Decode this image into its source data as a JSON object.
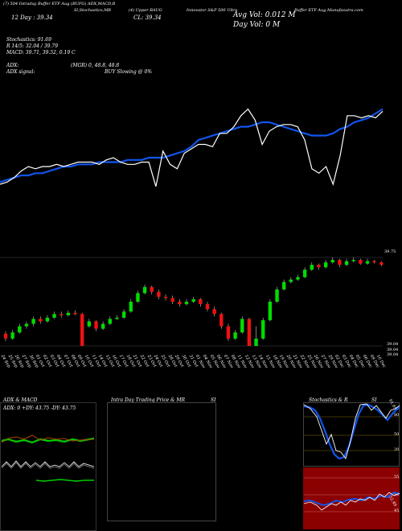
{
  "header": {
    "line1": "(7) 504 Intraday Buffer ETF Aug (BUFG) ADX,MACD,B",
    "line1_b": "Sl,Stochastics,MR",
    "line1_c": "(4) Upper BAUG",
    "line1_d": "Innovator S&P 500 Ultra",
    "line1_e": "Buffer ETF Aug Munafasutra.com",
    "day_label": "12 Day : 39.34",
    "cl_label": "CL: 39.34",
    "avg_vol": "Avg Vol: 0.012  M",
    "day_vol": "Day Vol: 0  M"
  },
  "indicators": {
    "stochastics": "Stochastics: 91.69",
    "r_line": "R  14/5: 32.04 / 39.79",
    "macd": "MACD: 39.71,  39.52,  0.19 C",
    "adx": "ADX:",
    "adx_val": "(MGR) 0,  48.8,  48.8",
    "adx_signal": "ADX  signal:",
    "buy_signal": "BUY Slowing @ 0%"
  },
  "candle_panel": {
    "right_label_top": "39.75",
    "right_label_bottom_1": "39.04",
    "right_label_bottom_2": "39.04",
    "right_label_bottom_3": "39.04"
  },
  "x_axis": {
    "dates": [
      "24 Sep",
      "25 Sep",
      "26 Sep",
      "27 Sep",
      "30 Sep",
      "01 Oct",
      "02 Oct",
      "03 Oct",
      "04 Oct",
      "07 Oct",
      "08 Oct",
      "09 Oct",
      "10 Oct",
      "11 Oct",
      "14 Oct",
      "15 Oct",
      "16 Oct",
      "17 Oct",
      "18 Oct",
      "21 Oct",
      "22 Oct",
      "23 Oct",
      "24 Oct",
      "25 Oct",
      "28 Oct",
      "29 Oct",
      "30 Oct",
      "31 Oct",
      "01 Nov",
      "04 Nov",
      "05 Nov",
      "06 Nov",
      "07 Nov",
      "08 Nov",
      "11 Nov",
      "12 Nov",
      "13 Nov",
      "14 Nov",
      "15 Nov",
      "18 Nov",
      "19 Nov",
      "20 Nov",
      "21 Nov",
      "22 Nov",
      "25 Nov",
      "26 Nov",
      "27 Nov",
      "29 Nov",
      "02 Dec",
      "03 Dec",
      "04 Dec",
      "05 Dec",
      "06 Dec",
      "09 Dec",
      "10 Dec"
    ]
  },
  "bottom_panels": {
    "adx_title": "ADX  & MACD",
    "adx_stats": "ADX: 0   +DY: 43.75   -DY: 43.75",
    "intra_title": "Intra  Day Trading Price  & MR",
    "intra_si": "SI",
    "stoch_title": "Stochastics & R",
    "stoch_si": "SI",
    "stoch_labels": [
      "80",
      "50",
      "20"
    ],
    "rsi_labels": [
      "55",
      "50",
      "45"
    ],
    "stoch_value_tag": "91.69",
    "rsi_value_tag": "52.49"
  },
  "colors": {
    "background": "#000000",
    "price_line": "#ffffff",
    "ma_line": "#1155ee",
    "up_candle": "#00dd00",
    "down_candle": "#ee1111",
    "rsi_panel": "#8b0000"
  },
  "chart_data": [
    {
      "type": "line",
      "title": "",
      "series": [
        {
          "name": "",
          "values": [
            30,
            31,
            32,
            33,
            33,
            34,
            34,
            35,
            36,
            37,
            37,
            38,
            38,
            38,
            39,
            39,
            39,
            39,
            40,
            40,
            40,
            41,
            41,
            41,
            42,
            43,
            44,
            46,
            49,
            50,
            51,
            52,
            53,
            54,
            55,
            55,
            56,
            57,
            57,
            56,
            55,
            54,
            53,
            52,
            51,
            51,
            51,
            52,
            54,
            55,
            57,
            58,
            59,
            61,
            63
          ]
        },
        {
          "name": "",
          "values": [
            29,
            30,
            32,
            35,
            37,
            36,
            37,
            37,
            38,
            37,
            38,
            39,
            39,
            39,
            38,
            40,
            41,
            39,
            38,
            38,
            39,
            39,
            28,
            44,
            38,
            36,
            43,
            45,
            47,
            47,
            46,
            52,
            52,
            55,
            60,
            63,
            58,
            47,
            53,
            55,
            56,
            56,
            55,
            49,
            36,
            34,
            37,
            29,
            42,
            60,
            60,
            59,
            60,
            59,
            62
          ]
        }
      ]
    },
    {
      "type": "bar",
      "title": "",
      "categories": [
        "24 Sep",
        "25 Sep",
        "26 Sep",
        "27 Sep",
        "30 Sep",
        "01 Oct",
        "02 Oct",
        "03 Oct",
        "04 Oct",
        "07 Oct",
        "08 Oct",
        "09 Oct",
        "10 Oct",
        "11 Oct",
        "14 Oct",
        "15 Oct",
        "16 Oct",
        "17 Oct",
        "18 Oct",
        "21 Oct",
        "22 Oct",
        "23 Oct",
        "24 Oct",
        "25 Oct",
        "28 Oct",
        "29 Oct",
        "30 Oct",
        "31 Oct",
        "01 Nov",
        "04 Nov",
        "05 Nov",
        "06 Nov",
        "07 Nov",
        "08 Nov",
        "11 Nov",
        "12 Nov",
        "13 Nov",
        "14 Nov",
        "15 Nov",
        "18 Nov",
        "19 Nov",
        "20 Nov",
        "21 Nov",
        "22 Nov",
        "25 Nov",
        "26 Nov",
        "27 Nov",
        "29 Nov",
        "02 Dec",
        "03 Dec",
        "04 Dec",
        "05 Dec",
        "06 Dec",
        "09 Dec",
        "10 Dec"
      ],
      "candles": [
        [
          39.14,
          39.1,
          39.16,
          39.08
        ],
        [
          39.1,
          39.15,
          39.17,
          39.09
        ],
        [
          39.15,
          39.2,
          39.22,
          39.14
        ],
        [
          39.2,
          39.22,
          39.24,
          39.18
        ],
        [
          39.22,
          39.26,
          39.28,
          39.2
        ],
        [
          39.26,
          39.24,
          39.28,
          39.22
        ],
        [
          39.24,
          39.27,
          39.29,
          39.23
        ],
        [
          39.27,
          39.3,
          39.32,
          39.26
        ],
        [
          39.3,
          39.29,
          39.32,
          39.27
        ],
        [
          39.29,
          39.31,
          39.33,
          39.28
        ],
        [
          39.31,
          39.3,
          39.33,
          39.29
        ],
        [
          39.3,
          39.04,
          39.31,
          39.04
        ],
        [
          39.2,
          39.24,
          39.26,
          39.19
        ],
        [
          39.24,
          39.18,
          39.25,
          39.16
        ],
        [
          39.18,
          39.22,
          39.24,
          39.17
        ],
        [
          39.22,
          39.26,
          39.28,
          39.21
        ],
        [
          39.26,
          39.27,
          39.29,
          39.25
        ],
        [
          39.27,
          39.32,
          39.34,
          39.26
        ],
        [
          39.32,
          39.4,
          39.42,
          39.31
        ],
        [
          39.4,
          39.47,
          39.49,
          39.39
        ],
        [
          39.47,
          39.52,
          39.54,
          39.46
        ],
        [
          39.52,
          39.48,
          39.53,
          39.46
        ],
        [
          39.48,
          39.44,
          39.5,
          39.42
        ],
        [
          39.44,
          39.43,
          39.46,
          39.41
        ],
        [
          39.43,
          39.4,
          39.45,
          39.38
        ],
        [
          39.4,
          39.38,
          39.42,
          39.36
        ],
        [
          39.38,
          39.4,
          39.42,
          39.37
        ],
        [
          39.4,
          39.42,
          39.44,
          39.39
        ],
        [
          39.42,
          39.38,
          39.43,
          39.36
        ],
        [
          39.38,
          39.34,
          39.4,
          39.32
        ],
        [
          39.34,
          39.3,
          39.36,
          39.28
        ],
        [
          39.3,
          39.2,
          39.31,
          39.18
        ],
        [
          39.2,
          39.1,
          39.22,
          39.08
        ],
        [
          39.1,
          39.15,
          39.17,
          39.09
        ],
        [
          39.15,
          39.26,
          39.28,
          39.14
        ],
        [
          39.26,
          39.04,
          39.27,
          39.04
        ],
        [
          39.04,
          39.1,
          39.2,
          39.04
        ],
        [
          39.1,
          39.25,
          39.27,
          39.09
        ],
        [
          39.25,
          39.4,
          39.42,
          39.24
        ],
        [
          39.4,
          39.5,
          39.52,
          39.39
        ],
        [
          39.5,
          39.56,
          39.58,
          39.49
        ],
        [
          39.56,
          39.58,
          39.6,
          39.55
        ],
        [
          39.58,
          39.6,
          39.62,
          39.57
        ],
        [
          39.6,
          39.66,
          39.68,
          39.59
        ],
        [
          39.66,
          39.7,
          39.72,
          39.65
        ],
        [
          39.7,
          39.68,
          39.71,
          39.66
        ],
        [
          39.68,
          39.72,
          39.74,
          39.67
        ],
        [
          39.72,
          39.74,
          39.76,
          39.71
        ],
        [
          39.74,
          39.7,
          39.75,
          39.68
        ],
        [
          39.7,
          39.73,
          39.75,
          39.69
        ],
        [
          39.73,
          39.74,
          39.76,
          39.72
        ],
        [
          39.74,
          39.71,
          39.75,
          39.7
        ],
        [
          39.71,
          39.73,
          39.75,
          39.7
        ],
        [
          39.73,
          39.72,
          39.74,
          39.71
        ],
        [
          39.72,
          39.7,
          39.73,
          39.69
        ]
      ]
    }
  ]
}
